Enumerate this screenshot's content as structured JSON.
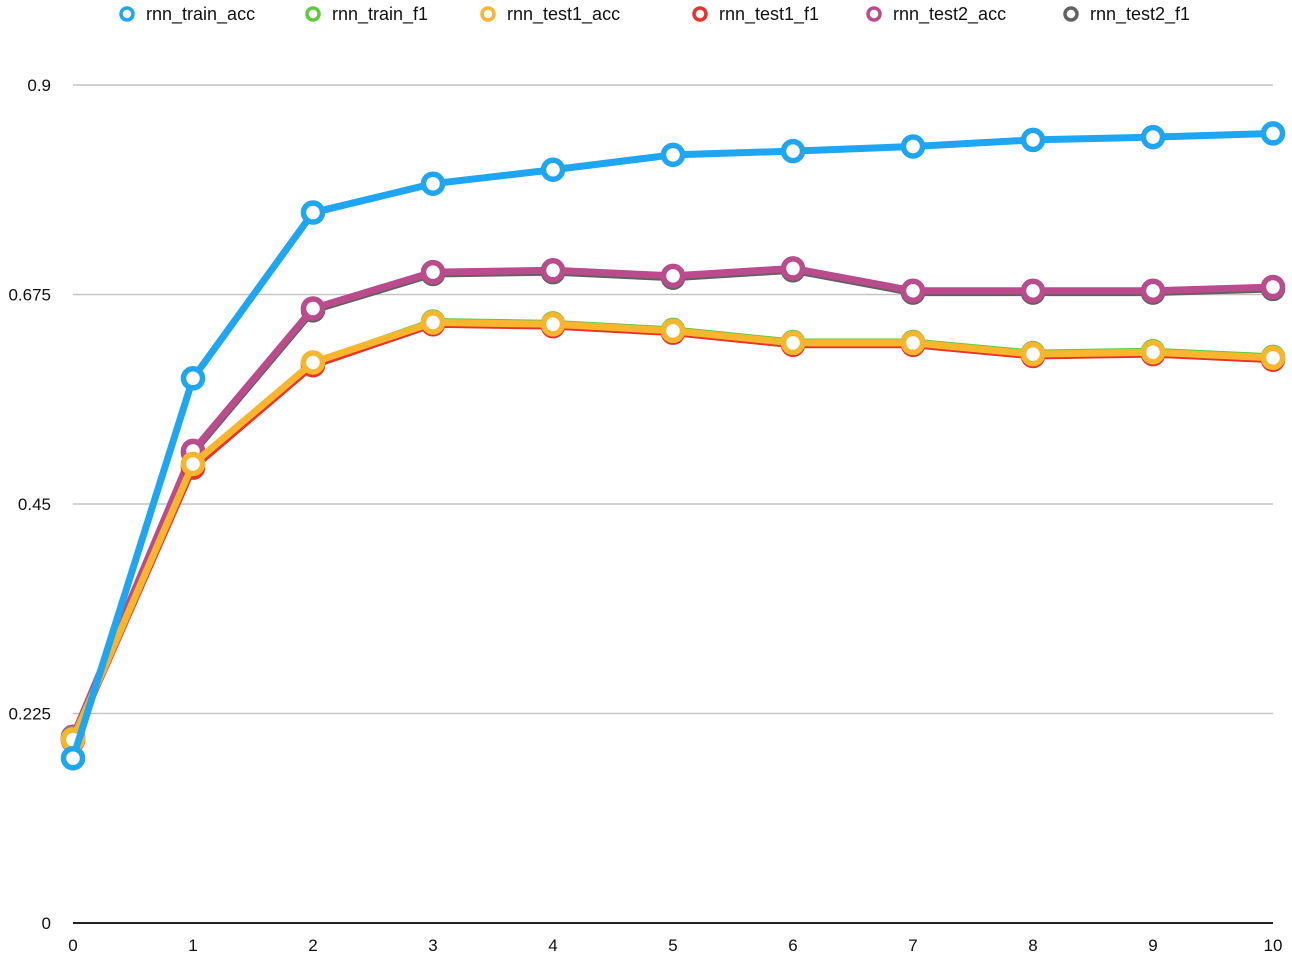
{
  "chart_data": {
    "type": "line",
    "title": "",
    "xlabel": "",
    "ylabel": "",
    "x": [
      0,
      1,
      2,
      3,
      4,
      5,
      6,
      7,
      8,
      9,
      10
    ],
    "x_ticks": [
      "0",
      "1",
      "2",
      "3",
      "4",
      "5",
      "6",
      "7",
      "8",
      "9",
      "10"
    ],
    "ylim": [
      0,
      0.9
    ],
    "y_ticks": [
      {
        "value": 0,
        "label": "0"
      },
      {
        "value": 0.225,
        "label": "0.225"
      },
      {
        "value": 0.45,
        "label": "0.45"
      },
      {
        "value": 0.675,
        "label": "0.675"
      },
      {
        "value": 0.9,
        "label": "0.9"
      }
    ],
    "grid": true,
    "legend_position": "top",
    "series": [
      {
        "name": "rnn_train_acc",
        "color": "#1EA6F2",
        "values": [
          0.177,
          0.585,
          0.763,
          0.794,
          0.809,
          0.825,
          0.829,
          0.834,
          0.841,
          0.844,
          0.848
        ]
      },
      {
        "name": "rnn_train_f1",
        "color": "#5DCB3C",
        "values": [
          0.198,
          0.491,
          0.601,
          0.646,
          0.644,
          0.637,
          0.624,
          0.624,
          0.612,
          0.614,
          0.608
        ]
      },
      {
        "name": "rnn_test1_acc",
        "color": "#F7B62E",
        "values": [
          0.197,
          0.493,
          0.602,
          0.645,
          0.643,
          0.636,
          0.623,
          0.623,
          0.611,
          0.613,
          0.607
        ]
      },
      {
        "name": "rnn_test1_f1",
        "color": "#E8322B",
        "values": [
          0.196,
          0.489,
          0.599,
          0.643,
          0.641,
          0.634,
          0.621,
          0.621,
          0.609,
          0.611,
          0.605
        ]
      },
      {
        "name": "rnn_test2_acc",
        "color": "#BA4B8C",
        "values": [
          0.2,
          0.507,
          0.66,
          0.699,
          0.701,
          0.695,
          0.703,
          0.679,
          0.679,
          0.679,
          0.683
        ]
      },
      {
        "name": "rnn_test2_f1",
        "color": "#616161",
        "values": [
          0.199,
          0.505,
          0.658,
          0.697,
          0.699,
          0.693,
          0.701,
          0.677,
          0.677,
          0.677,
          0.681
        ]
      }
    ],
    "draw_order": [
      "rnn_test2_f1",
      "rnn_test2_acc",
      "rnn_train_f1",
      "rnn_test1_f1",
      "rnn_test1_acc",
      "rnn_train_acc"
    ]
  }
}
